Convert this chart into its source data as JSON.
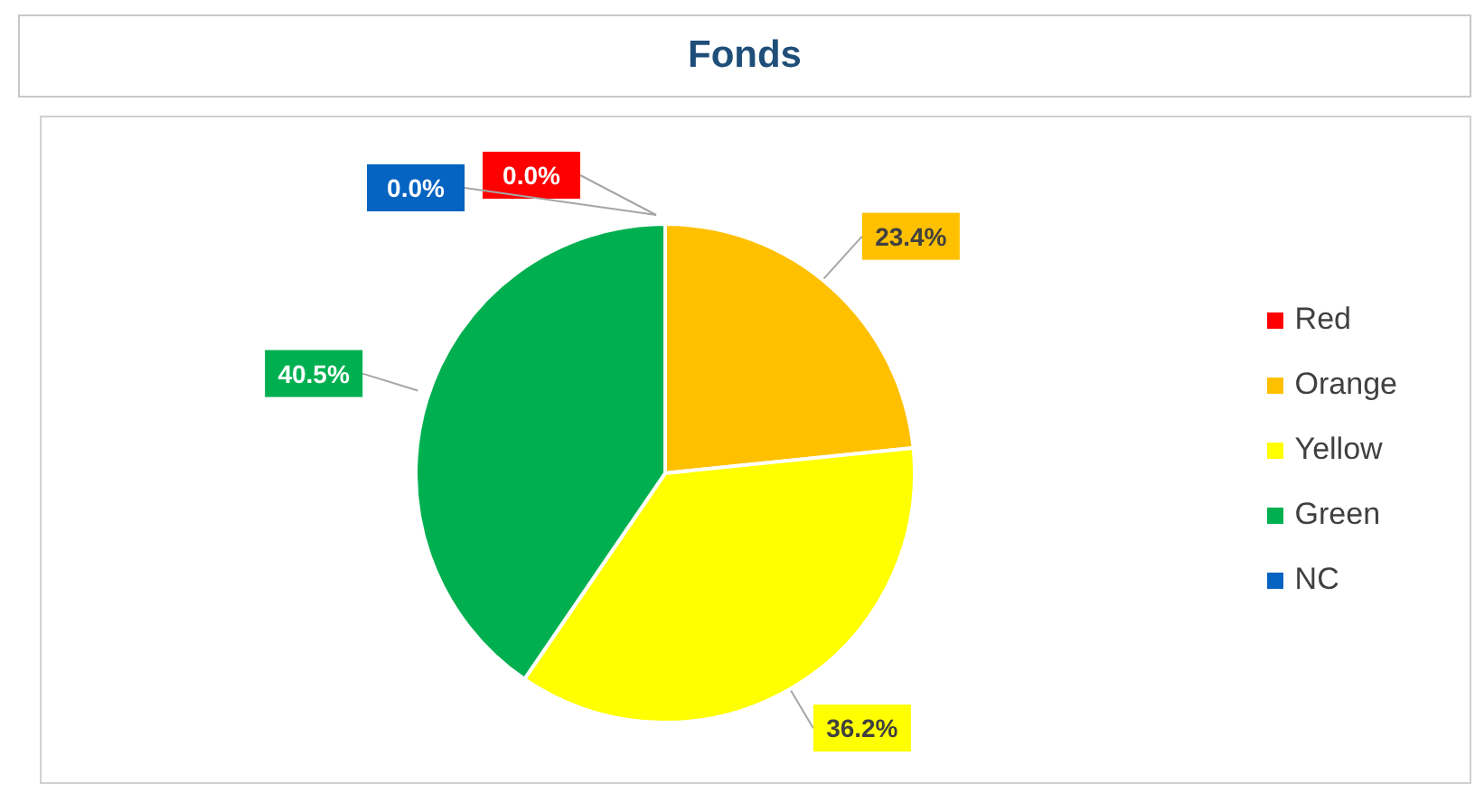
{
  "chart_data": {
    "type": "pie",
    "title": "Fonds",
    "categories": [
      "Red",
      "Orange",
      "Yellow",
      "Green",
      "NC"
    ],
    "values": [
      0.0,
      23.4,
      36.2,
      40.5,
      0.0
    ],
    "colors": [
      "#ff0000",
      "#ffc000",
      "#ffff00",
      "#00b050",
      "#0563c1"
    ],
    "value_labels": [
      "0.0%",
      "23.4%",
      "36.2%",
      "40.5%",
      "0.0%"
    ],
    "legend": "right"
  }
}
